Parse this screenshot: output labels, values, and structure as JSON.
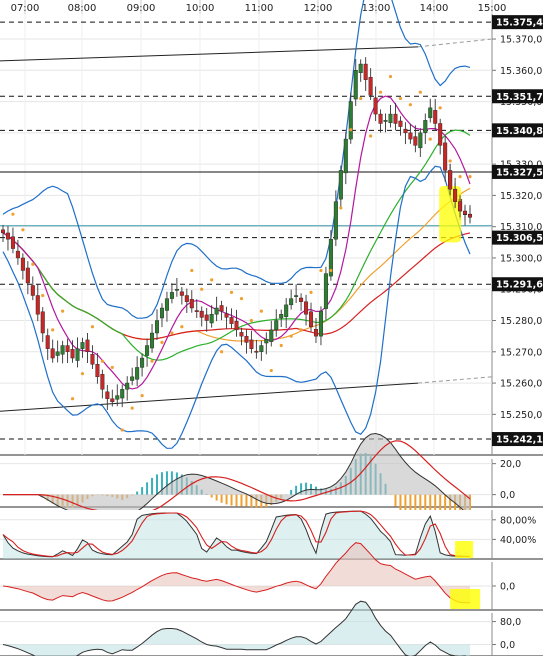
{
  "chart_data": {
    "type": "candlestick",
    "instrument_timeframe": "intraday",
    "x_ticks": [
      "07:00",
      "08:00",
      "09:00",
      "10:00",
      "11:00",
      "12:00",
      "13:00",
      "14:00",
      "15:00"
    ],
    "main_panel": {
      "ylim": [
        15237,
        15378
      ],
      "y_ticks": [
        15250.0,
        15260.0,
        15270.0,
        15280.0,
        15290.0,
        15300.0,
        15310.0,
        15320.0,
        15330.0,
        15340.0,
        15350.0,
        15360.0,
        15370.0
      ],
      "y_tick_labels": [
        "15.250,0",
        "15.260,0",
        "15.270,0",
        "15.280,0",
        "15.290,0",
        "15.300,0",
        "15.310,0",
        "15.320,0",
        "15.330,0",
        "15.340,0",
        "15.350,0",
        "15.360,0",
        "15.370,0"
      ],
      "highlighted_levels": [
        {
          "value": 15375.4,
          "label": "15.375,4"
        },
        {
          "value": 15351.7,
          "label": "15.351,7"
        },
        {
          "value": 15340.8,
          "label": "15.340,8"
        },
        {
          "value": 15327.5,
          "label": "15.327,5"
        },
        {
          "value": 15306.5,
          "label": "15.306,5"
        },
        {
          "value": 15291.6,
          "label": "15.291,6"
        },
        {
          "value": 15242.1,
          "label": "15.242,1"
        }
      ],
      "close_series": [
        15308,
        15306,
        15303,
        15300,
        15296,
        15292,
        15288,
        15282,
        15276,
        15271,
        15268,
        15270,
        15272,
        15270,
        15268,
        15271,
        15273,
        15270,
        15266,
        15262,
        15258,
        15255,
        15254,
        15256,
        15258,
        15260,
        15262,
        15265,
        15268,
        15272,
        15276,
        15280,
        15284,
        15287,
        15289,
        15290,
        15288,
        15286,
        15284,
        15283,
        15281,
        15280,
        15282,
        15284,
        15283,
        15281,
        15279,
        15277,
        15275,
        15273,
        15271,
        15270,
        15272,
        15274,
        15277,
        15280,
        15282,
        15285,
        15287,
        15288,
        15286,
        15282,
        15278,
        15275,
        15283,
        15295,
        15306,
        15318,
        15328,
        15338,
        15350,
        15360,
        15362,
        15357,
        15352,
        15346,
        15343,
        15344,
        15346,
        15343,
        15342,
        15340,
        15338,
        15336,
        15340,
        15344,
        15348,
        15343,
        15336,
        15328,
        15322,
        15318,
        15315,
        15314,
        15313
      ]
    },
    "macd_panel": {
      "ylim": [
        -8,
        23
      ],
      "y_ticks": [
        20.0,
        0.0
      ],
      "y_tick_labels": [
        "20,0",
        "0,0"
      ]
    },
    "stochastic_panel": {
      "ylim": [
        0,
        100
      ],
      "y_ticks": [
        80.0,
        40.0
      ],
      "y_tick_labels": [
        "80,00%",
        "40,00%"
      ]
    },
    "oscillator_panel": {
      "ylim": [
        -60,
        60
      ],
      "y_ticks": [
        0.0
      ],
      "y_tick_labels": [
        "0,0"
      ]
    },
    "momentum_panel": {
      "ylim": [
        -40,
        110
      ],
      "y_ticks": [
        80.0,
        0.0
      ],
      "y_tick_labels": [
        "80,0",
        "0,0"
      ]
    },
    "colors": {
      "candle_up": "#2e7d32",
      "candle_down": "#c62828",
      "bollinger": "#1f6fc9",
      "ma_fast": "#b5179e",
      "ma_mid": "#2bb02b",
      "ma_slow": "#d62020",
      "ma_orange": "#f0a030",
      "sar": "#f0a030",
      "highlight": "#ffff00",
      "histogram_up": "#3ab0b8",
      "histogram_down": "#f0a030",
      "area_up": "#b8dde0",
      "area_down": "#e8c0b8"
    }
  }
}
